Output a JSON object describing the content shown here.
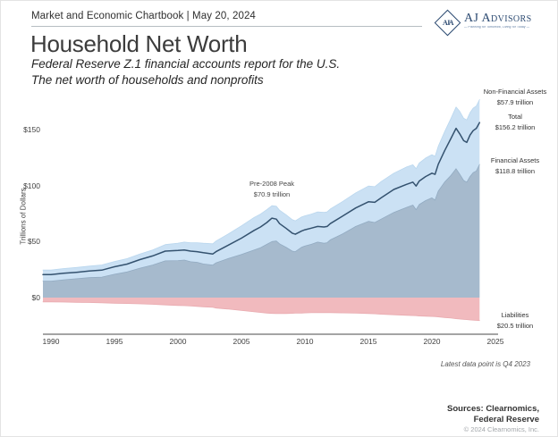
{
  "header": {
    "chartbook": "Market and Economic Chartbook | May 20, 2024"
  },
  "logo": {
    "monogram": "AJA",
    "name": "AJ Advisors",
    "tagline": "— Planning for Tomorrow, Living for Today —"
  },
  "title": "Household Net Worth",
  "subtitle": {
    "line1": "Federal Reserve Z.1 financial accounts report for the U.S.",
    "line2": "The net worth of households and nonprofits"
  },
  "chart_data": {
    "type": "area",
    "title": "Household Net Worth",
    "ylabel": "Trillions of Dollars",
    "xlim": [
      1990,
      2025
    ],
    "ylim": [
      -30,
      180
    ],
    "grid": false,
    "legend_position": "right-annotations",
    "x_ticks": [
      1990,
      1995,
      2000,
      2005,
      2010,
      2015,
      2020,
      2025
    ],
    "y_ticks": [
      {
        "label": "$0",
        "value": 0
      },
      {
        "label": "$50",
        "value": 50
      },
      {
        "label": "$100",
        "value": 100
      },
      {
        "label": "$150",
        "value": 150
      }
    ],
    "x": [
      1990,
      1991,
      1992,
      1993,
      1994,
      1995,
      1996,
      1997,
      1998,
      1999,
      2000,
      2000.5,
      2001,
      2001.5,
      2002,
      2002.75,
      2003,
      2004,
      2005,
      2006,
      2006.5,
      2007,
      2007.4,
      2007.75,
      2008,
      2008.5,
      2009,
      2009.25,
      2009.75,
      2010,
      2010.5,
      2011,
      2011.5,
      2011.75,
      2012,
      2013,
      2014,
      2015,
      2015.5,
      2016,
      2017,
      2018,
      2018.5,
      2018.75,
      2019,
      2019.5,
      2020,
      2020.25,
      2020.5,
      2021,
      2021.5,
      2021.9,
      2022.2,
      2022.5,
      2022.75,
      2023,
      2023.25,
      2023.5,
      2023.75
    ],
    "series": [
      {
        "id": "total-assets",
        "name": "Total Assets (Financial + Non-Financial)",
        "style": "area",
        "color": "#cbe1f4",
        "edge": "#bad7ee",
        "values": [
          24.6,
          25.9,
          26.9,
          28.1,
          29.1,
          32.2,
          34.8,
          38.9,
          42.5,
          47.3,
          48.5,
          49.5,
          49.0,
          49.0,
          48.5,
          48.0,
          50.5,
          57.0,
          64.0,
          71.5,
          74.5,
          78.5,
          82.0,
          81.5,
          78.0,
          74.0,
          69.5,
          68.5,
          72.0,
          73.0,
          74.5,
          76.5,
          76.0,
          76.5,
          79.0,
          86.0,
          93.5,
          99.5,
          99.0,
          103.5,
          111.0,
          116.5,
          118.5,
          115.0,
          120.0,
          124.5,
          127.5,
          126.0,
          135.0,
          148.0,
          160.0,
          170.0,
          166.0,
          160.0,
          158.5,
          165.0,
          169.0,
          171.0,
          176.7
        ]
      },
      {
        "id": "financial-assets",
        "name": "Financial Assets",
        "style": "area",
        "color": "#a6bacd",
        "edge": "#92abc2",
        "values": [
          14.7,
          15.9,
          16.8,
          17.8,
          18.3,
          20.8,
          22.9,
          26.2,
          29.0,
          32.8,
          33.0,
          33.5,
          32.0,
          31.5,
          30.0,
          29.0,
          31.0,
          35.0,
          38.5,
          42.5,
          44.5,
          47.5,
          50.0,
          50.5,
          48.0,
          45.0,
          41.5,
          41.0,
          45.0,
          46.0,
          47.5,
          49.5,
          48.5,
          49.0,
          51.5,
          57.0,
          63.5,
          68.0,
          67.0,
          70.0,
          76.0,
          80.5,
          82.5,
          78.5,
          83.0,
          86.5,
          89.0,
          87.0,
          95.0,
          103.0,
          109.0,
          115.0,
          110.0,
          104.5,
          103.0,
          108.0,
          111.5,
          113.0,
          118.8
        ]
      },
      {
        "id": "liabilities",
        "name": "Liabilities",
        "style": "area",
        "color": "#f1babe",
        "edge": "#e9abb0",
        "values": [
          -3.8,
          -4.0,
          -4.2,
          -4.4,
          -4.7,
          -5.0,
          -5.3,
          -5.6,
          -6.0,
          -6.5,
          -7.0,
          -7.2,
          -7.5,
          -7.8,
          -8.2,
          -8.7,
          -9.3,
          -10.3,
          -11.5,
          -12.7,
          -13.2,
          -13.8,
          -14.1,
          -14.3,
          -14.3,
          -14.2,
          -14.0,
          -13.9,
          -13.8,
          -13.6,
          -13.5,
          -13.4,
          -13.4,
          -13.4,
          -13.4,
          -13.6,
          -13.9,
          -14.2,
          -14.4,
          -14.8,
          -15.3,
          -15.8,
          -16.0,
          -16.1,
          -16.4,
          -16.6,
          -16.8,
          -16.9,
          -17.2,
          -17.8,
          -18.3,
          -18.8,
          -19.1,
          -19.4,
          -19.6,
          -19.9,
          -20.1,
          -20.3,
          -20.5
        ]
      },
      {
        "id": "net-worth",
        "name": "Total Net Worth",
        "style": "line",
        "color": "#34526f",
        "values": [
          20.5,
          21.7,
          22.6,
          23.7,
          24.5,
          27.5,
          29.9,
          33.9,
          37.2,
          41.5,
          42.0,
          42.5,
          41.5,
          41.0,
          40.0,
          38.9,
          41.0,
          47.0,
          53.0,
          60.0,
          63.0,
          67.0,
          70.9,
          70.0,
          66.0,
          62.0,
          57.5,
          56.5,
          59.5,
          60.5,
          62.0,
          63.5,
          63.0,
          63.5,
          66.0,
          73.0,
          80.0,
          85.5,
          85.0,
          89.0,
          96.5,
          101.0,
          103.0,
          99.5,
          104.0,
          108.0,
          111.0,
          110.0,
          119.0,
          131.0,
          142.0,
          151.0,
          146.0,
          140.0,
          138.5,
          145.0,
          149.0,
          151.0,
          156.2
        ]
      }
    ],
    "annotations": {
      "peak": {
        "line1": "Pre-2008 Peak",
        "line2": "$70.9 trillion",
        "x": 2007.4,
        "y": 70.9
      }
    },
    "labels": {
      "non_financial": {
        "line1": "Non-Financial Assets",
        "line2": "$57.9 trillion"
      },
      "total": {
        "line1": "Total",
        "line2": "$156.2 trillion"
      },
      "financial": {
        "line1": "Financial Assets",
        "line2": "$118.8 trillion"
      },
      "liabilities": {
        "line1": "Liabilities",
        "line2": "$20.5 trillion"
      }
    },
    "note": "Latest data point is Q4 2023"
  },
  "footer": {
    "sources_line1": "Sources: Clearnomics,",
    "sources_line2": "Federal Reserve",
    "copyright": "© 2024 Clearnomics, Inc."
  }
}
